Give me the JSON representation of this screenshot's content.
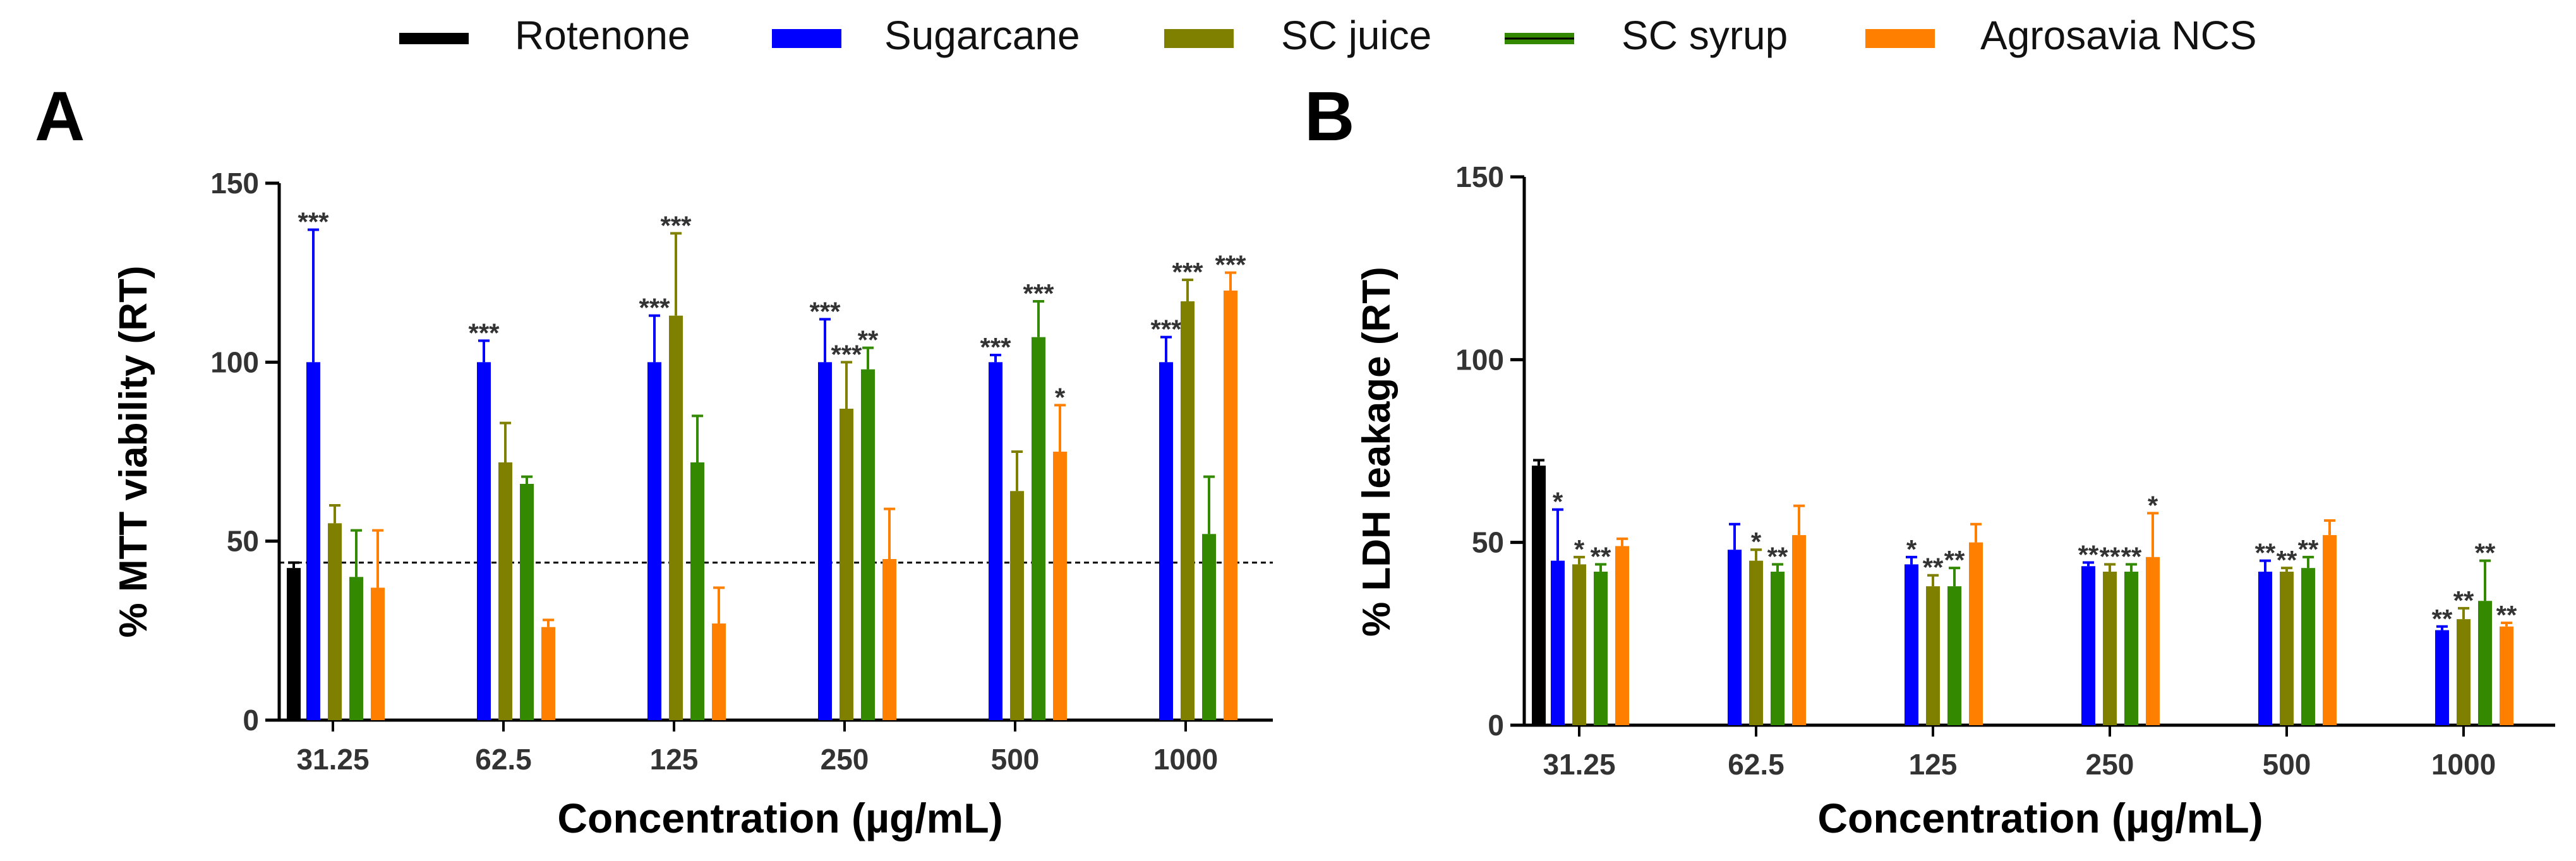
{
  "legend": [
    {
      "name": "Rotenone",
      "color": "#000000"
    },
    {
      "name": "Sugarcane",
      "color": "#0000FF"
    },
    {
      "name": "SC juice",
      "color": "#7F7F00"
    },
    {
      "name": "SC syrup",
      "color": "#338A00"
    },
    {
      "name": "Agrosavia NCS",
      "color": "#FF8000"
    }
  ],
  "chart_data": [
    {
      "panel_letter": "A",
      "type": "bar",
      "title": "",
      "xlabel": "Concentration (µg/mL)",
      "ylabel": "% MTT viability  (RT)",
      "ylim": [
        0,
        150
      ],
      "yticks": [
        "0",
        "50",
        "100",
        "150"
      ],
      "categories": [
        "31.25",
        "62.5",
        "125",
        "250",
        "500",
        "1000"
      ],
      "reference_line": 44,
      "rotenone": {
        "name": "Rotenone",
        "value": 42.5,
        "error": 1.5
      },
      "series": [
        {
          "name": "Sugarcane",
          "values": [
            100,
            100,
            100,
            100,
            100,
            100
          ],
          "errors": [
            37,
            6,
            13,
            12,
            2,
            7
          ],
          "labels": [
            "***",
            "***",
            "***",
            "***",
            "***",
            "***"
          ]
        },
        {
          "name": "SC juice",
          "values": [
            55,
            72,
            113,
            87,
            64,
            117
          ],
          "errors": [
            5,
            11,
            23,
            13,
            11,
            6
          ],
          "labels": [
            "",
            "",
            "***",
            "***",
            "",
            "***"
          ]
        },
        {
          "name": "SC syrup",
          "values": [
            40,
            66,
            72,
            98,
            107,
            52
          ],
          "errors": [
            13,
            2,
            13,
            6,
            10,
            16
          ],
          "labels": [
            "",
            "",
            "",
            "**",
            "***",
            ""
          ]
        },
        {
          "name": "Agrosavia NCS",
          "values": [
            37,
            26,
            27,
            45,
            75,
            120
          ],
          "errors": [
            16,
            2,
            10,
            14,
            13,
            5
          ],
          "labels": [
            "",
            "",
            "",
            "",
            "*",
            "***"
          ]
        }
      ]
    },
    {
      "panel_letter": "B",
      "type": "bar",
      "title": "",
      "xlabel": "Concentration (µg/mL)",
      "ylabel": "% LDH leakage (RT)",
      "ylim": [
        0,
        150
      ],
      "yticks": [
        "0",
        "50",
        "100",
        "150"
      ],
      "categories": [
        "31.25",
        "62.5",
        "125",
        "250",
        "500",
        "1000"
      ],
      "rotenone": {
        "name": "Rotenone",
        "value": 71,
        "error": 1.5
      },
      "series": [
        {
          "name": "Sugarcane",
          "values": [
            45,
            48,
            44,
            43.5,
            42,
            26
          ],
          "errors": [
            14,
            7,
            2,
            1,
            3,
            1
          ],
          "labels": [
            "*",
            "",
            "*",
            "**",
            "**",
            "**"
          ]
        },
        {
          "name": "SC juice",
          "values": [
            44,
            45,
            38,
            42,
            42,
            29
          ],
          "errors": [
            2,
            3,
            3,
            2,
            1,
            3
          ],
          "labels": [
            "*",
            "*",
            "**",
            "**",
            "**",
            "**"
          ]
        },
        {
          "name": "SC syrup",
          "values": [
            42,
            42,
            38,
            42,
            43,
            34
          ],
          "errors": [
            2,
            2,
            5,
            2,
            3,
            11
          ],
          "labels": [
            "**",
            "**",
            "**",
            "**",
            "**",
            "**"
          ]
        },
        {
          "name": "Agrosavia NCS",
          "values": [
            49,
            52,
            50,
            46,
            52,
            27
          ],
          "errors": [
            2,
            8,
            5,
            12,
            4,
            1
          ],
          "labels": [
            "",
            "",
            "",
            "*",
            "",
            "**"
          ]
        }
      ]
    }
  ]
}
